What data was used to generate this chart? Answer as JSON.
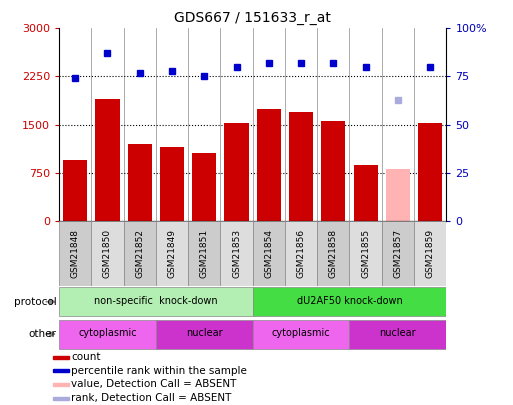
{
  "title": "GDS667 / 151633_r_at",
  "samples": [
    "GSM21848",
    "GSM21850",
    "GSM21852",
    "GSM21849",
    "GSM21851",
    "GSM21853",
    "GSM21854",
    "GSM21856",
    "GSM21858",
    "GSM21855",
    "GSM21857",
    "GSM21859"
  ],
  "bar_values": [
    950,
    1900,
    1200,
    1150,
    1050,
    1520,
    1750,
    1700,
    1560,
    870,
    800,
    1530
  ],
  "bar_absent": [
    false,
    false,
    false,
    false,
    false,
    false,
    false,
    false,
    false,
    false,
    true,
    false
  ],
  "rank_values": [
    74,
    87,
    77,
    78,
    75,
    80,
    82,
    82,
    82,
    80,
    63,
    80
  ],
  "rank_absent": [
    false,
    false,
    false,
    false,
    false,
    false,
    false,
    false,
    false,
    false,
    true,
    false
  ],
  "bar_color_normal": "#cc0000",
  "bar_color_absent": "#ffb3b3",
  "rank_color_normal": "#0000cc",
  "rank_color_absent": "#aaaadd",
  "ylim_left": [
    0,
    3000
  ],
  "ylim_right": [
    0,
    100
  ],
  "yticks_left": [
    0,
    750,
    1500,
    2250,
    3000
  ],
  "yticks_right": [
    0,
    25,
    50,
    75,
    100
  ],
  "ytick_labels_right": [
    "0",
    "25",
    "50",
    "75",
    "100%"
  ],
  "grid_values": [
    750,
    1500,
    2250
  ],
  "protocol_groups": [
    {
      "label": "non-specific  knock-down",
      "start": 0,
      "end": 6,
      "color": "#b3eeb3"
    },
    {
      "label": "dU2AF50 knock-down",
      "start": 6,
      "end": 12,
      "color": "#44dd44"
    }
  ],
  "other_groups": [
    {
      "label": "cytoplasmic",
      "start": 0,
      "end": 3,
      "color": "#ee66ee"
    },
    {
      "label": "nuclear",
      "start": 3,
      "end": 6,
      "color": "#cc33cc"
    },
    {
      "label": "cytoplasmic",
      "start": 6,
      "end": 9,
      "color": "#ee66ee"
    },
    {
      "label": "nuclear",
      "start": 9,
      "end": 12,
      "color": "#cc33cc"
    }
  ],
  "legend_items": [
    {
      "label": "count",
      "color": "#cc0000"
    },
    {
      "label": "percentile rank within the sample",
      "color": "#0000cc"
    },
    {
      "label": "value, Detection Call = ABSENT",
      "color": "#ffb3b3"
    },
    {
      "label": "rank, Detection Call = ABSENT",
      "color": "#aaaadd"
    }
  ],
  "bar_width": 0.75,
  "bg_color": "#ffffff",
  "xticklabel_bg": "#cccccc",
  "axis_label_color_left": "#cc0000",
  "axis_label_color_right": "#0000bb",
  "title_fontsize": 10,
  "tick_fontsize": 8,
  "sample_fontsize": 6.5,
  "label_fontsize": 7.5,
  "legend_fontsize": 7.5
}
